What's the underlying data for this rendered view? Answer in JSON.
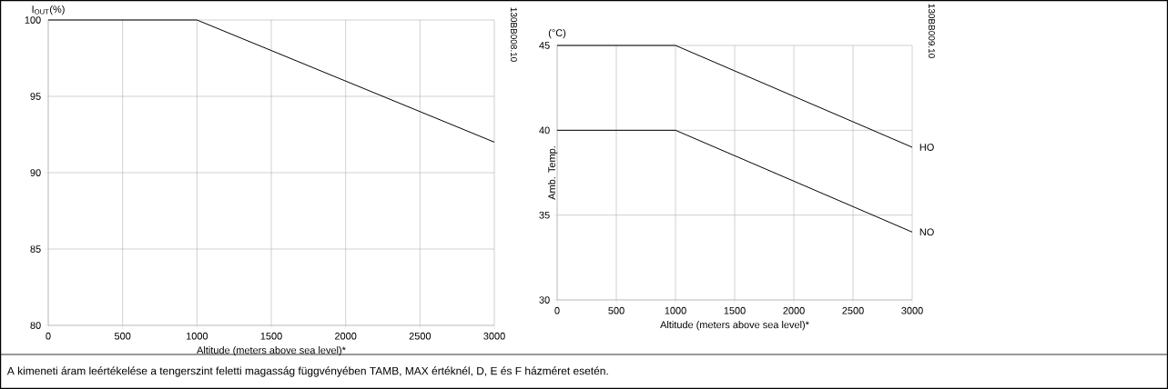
{
  "chart_data": [
    {
      "type": "line",
      "ylabel": "I$_{OUT}$(%)",
      "xlabel": "Altitude (meters above sea level)*",
      "xlim": [
        0,
        3000
      ],
      "xticks": [
        0,
        500,
        1000,
        1500,
        2000,
        2500,
        3000
      ],
      "ylim": [
        80,
        100
      ],
      "yticks": [
        80,
        85,
        90,
        95,
        100
      ],
      "grid": true,
      "line_style": "solid",
      "marker": "none",
      "series": [
        {
          "color": "#000000",
          "x": [
            0,
            1000,
            3000
          ],
          "values": [
            100,
            100,
            92
          ]
        }
      ],
      "annotations": [
        "130BB008.10",
        "A kimeneti áram leértékelése a tengerszint feletti magasság függvényében TAMB, MAX értéknél, D, E és F házméret esetén."
      ]
    },
    {
      "type": "line",
      "ylabel": "Amb. Temp.",
      "xlabel": "Altitude (meters above sea level)*",
      "xlim": [
        0,
        3000
      ],
      "xticks": [
        0,
        500,
        1000,
        1500,
        2000,
        2500,
        3000
      ],
      "ylim": [
        30,
        45
      ],
      "yticks": [
        30,
        35,
        40,
        45
      ],
      "grid": true,
      "line_style": "solid",
      "marker": "none",
      "series": [
        {
          "name": "HO",
          "color": "#000000",
          "x": [
            0,
            1000,
            3000
          ],
          "values": [
            45,
            45,
            39
          ]
        },
        {
          "name": "NO",
          "color": "#000000",
          "x": [
            0,
            1000,
            3000
          ],
          "values": [
            40,
            40,
            34
          ]
        }
      ],
      "annotations": [
        "130BB009.10",
        "(°C)"
      ]
    }
  ]
}
